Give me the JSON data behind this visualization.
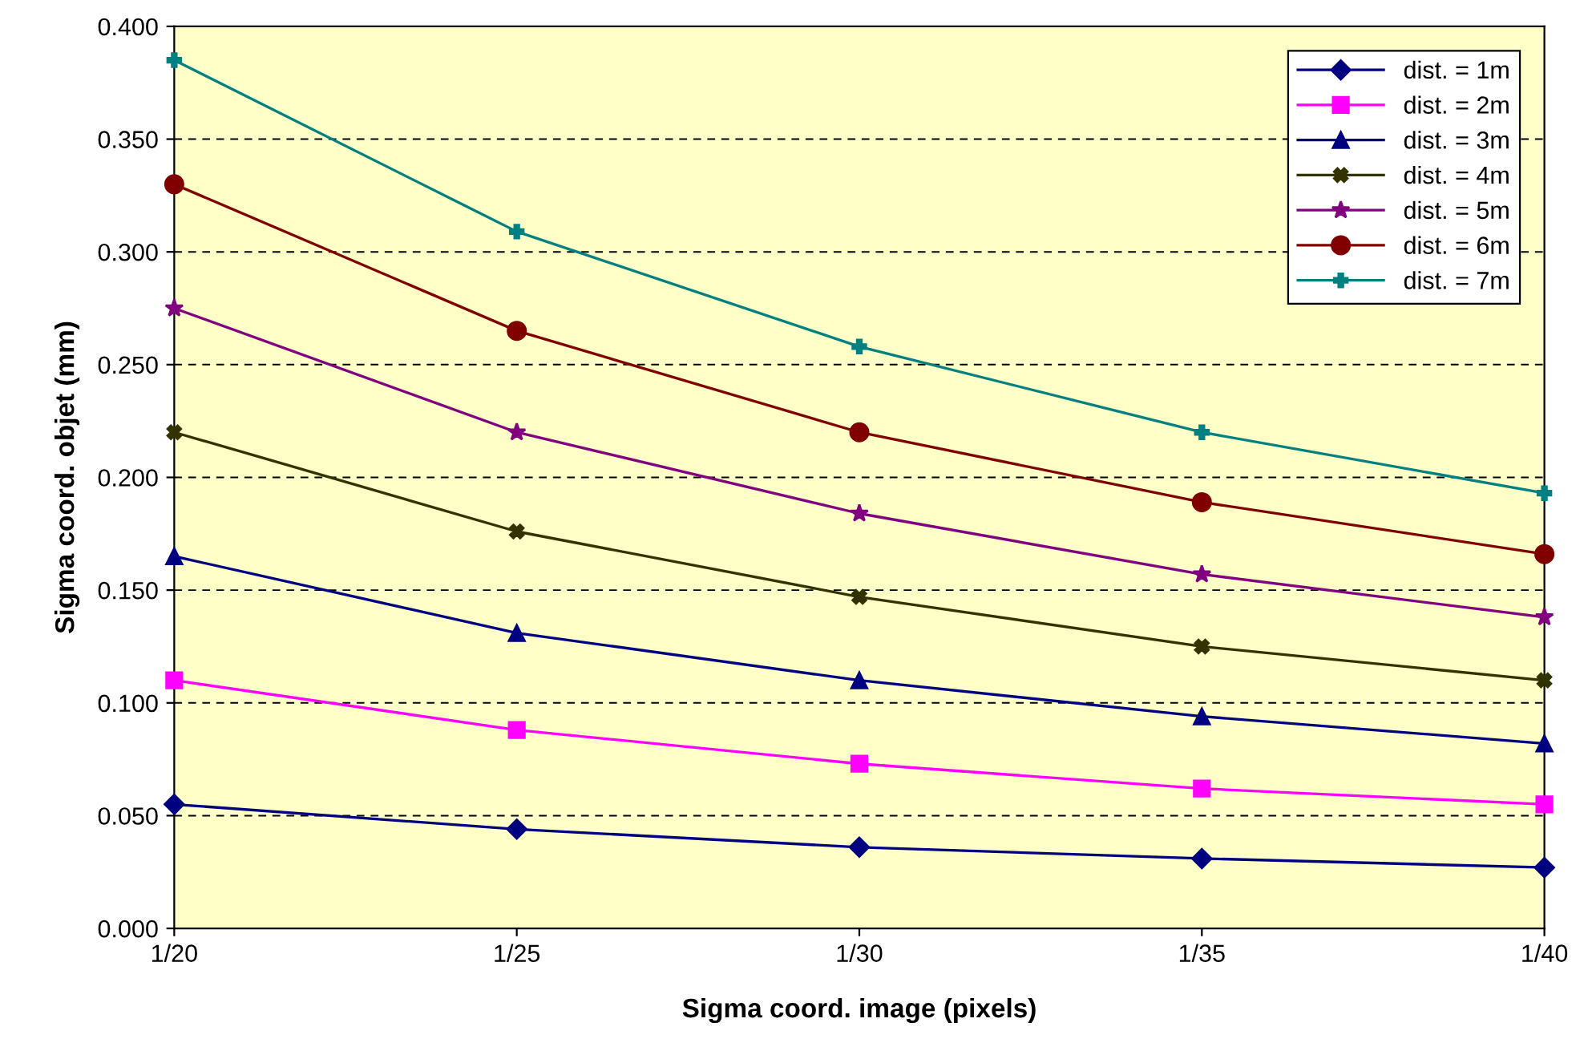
{
  "chart_data": {
    "type": "line",
    "xlabel": "Sigma coord. image (pixels)",
    "ylabel": "Sigma coord. objet (mm)",
    "categories": [
      "1/20",
      "1/25",
      "1/30",
      "1/35",
      "1/40"
    ],
    "series": [
      {
        "name": "dist. = 1m",
        "color": "#000080",
        "marker": "diamond",
        "values": [
          0.055,
          0.044,
          0.036,
          0.031,
          0.027
        ]
      },
      {
        "name": "dist. = 2m",
        "color": "#ff00ff",
        "marker": "square",
        "values": [
          0.11,
          0.088,
          0.073,
          0.062,
          0.055
        ]
      },
      {
        "name": "dist. = 3m",
        "color": "#000080",
        "marker": "triangle",
        "values": [
          0.165,
          0.131,
          0.11,
          0.094,
          0.082
        ]
      },
      {
        "name": "dist. = 4m",
        "color": "#333300",
        "marker": "cross",
        "values": [
          0.22,
          0.176,
          0.147,
          0.125,
          0.11
        ]
      },
      {
        "name": "dist. = 5m",
        "color": "#800080",
        "marker": "star",
        "values": [
          0.275,
          0.22,
          0.184,
          0.157,
          0.138
        ]
      },
      {
        "name": "dist. = 6m",
        "color": "#800000",
        "marker": "circle",
        "values": [
          0.33,
          0.265,
          0.22,
          0.189,
          0.166
        ]
      },
      {
        "name": "dist. = 7m",
        "color": "#008080",
        "marker": "plus",
        "values": [
          0.385,
          0.309,
          0.258,
          0.22,
          0.193
        ]
      }
    ],
    "ylim": [
      0,
      0.4
    ],
    "yticks": [
      {
        "value": 0,
        "label": "0.000"
      },
      {
        "value": 0.05,
        "label": "0.050"
      },
      {
        "value": 0.1,
        "label": "0.100"
      },
      {
        "value": 0.15,
        "label": "0.150"
      },
      {
        "value": 0.2,
        "label": "0.200"
      },
      {
        "value": 0.25,
        "label": "0.250"
      },
      {
        "value": 0.3,
        "label": "0.300"
      },
      {
        "value": 0.35,
        "label": "0.350"
      },
      {
        "value": 0.4,
        "label": "0.400"
      }
    ],
    "grid": "y",
    "line_style": "solid",
    "legend": "top right"
  }
}
